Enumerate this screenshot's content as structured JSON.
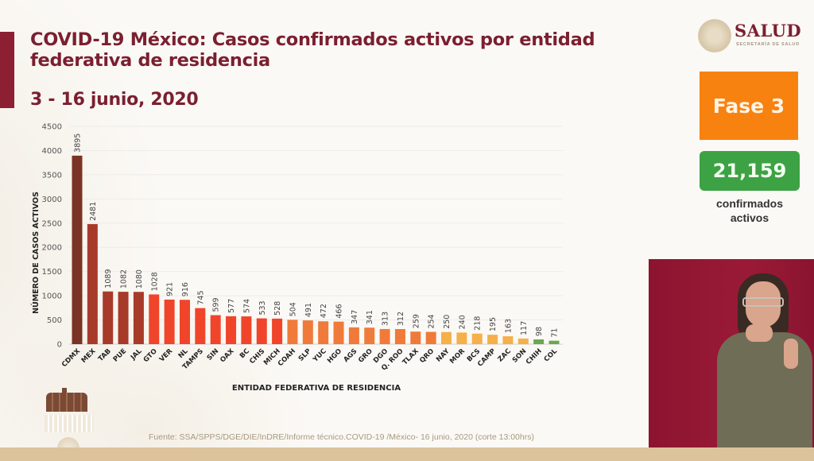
{
  "header": {
    "title": "COVID-19 México: Casos confirmados activos por entidad federativa de residencia",
    "date_range": "3 - 16 junio, 2020"
  },
  "branding": {
    "logo_text": "SALUD",
    "logo_subtext": "SECRETARÍA DE SALUD"
  },
  "status": {
    "phase_label": "Fase 3",
    "active_count": "21,159",
    "active_count_label": "confirmados activos",
    "phase_color": "#f8820f",
    "count_color": "#3da244"
  },
  "footer": {
    "source": "Fuente: SSA/SPPS/DGE/DIE/InDRE/Informe técnico.COVID-19 /México- 16 junio, 2020 (corte 13:00hrs)"
  },
  "chart_data": {
    "type": "bar",
    "title": "COVID-19 México: Casos confirmados activos por entidad federativa de residencia",
    "subtitle": "3 - 16 junio, 2020",
    "xlabel": "ENTIDAD FEDERATIVA DE RESIDENCIA",
    "ylabel": "NÚMERO DE CASOS ACTIVOS",
    "ylim": [
      0,
      4500
    ],
    "yticks": [
      0,
      500,
      1000,
      1500,
      2000,
      2500,
      3000,
      3500,
      4000,
      4500
    ],
    "grid": true,
    "data_labels": true,
    "categories": [
      "CDMX",
      "MEX",
      "TAB",
      "PUE",
      "JAL",
      "GTO",
      "VER",
      "NL",
      "TAMPS",
      "SIN",
      "OAX",
      "BC",
      "CHIS",
      "MICH",
      "COAH",
      "SLP",
      "YUC",
      "HGO",
      "AGS",
      "GRO",
      "DGO",
      "Q. ROO",
      "TLAX",
      "QRO",
      "NAY",
      "MOR",
      "BCS",
      "CAMP",
      "ZAC",
      "SON",
      "CHIH",
      "COL"
    ],
    "values": [
      3895,
      2481,
      1089,
      1082,
      1080,
      1028,
      921,
      916,
      745,
      599,
      577,
      574,
      533,
      528,
      504,
      491,
      472,
      466,
      347,
      341,
      313,
      312,
      259,
      254,
      250,
      240,
      218,
      195,
      163,
      117,
      98,
      71
    ],
    "bar_colors": [
      "#7a3324",
      "#a83a2a",
      "#a83a2a",
      "#a83a2a",
      "#a83a2a",
      "#f0452a",
      "#f0452a",
      "#f0452a",
      "#f0452a",
      "#f0452a",
      "#f0452a",
      "#f0452a",
      "#f0452a",
      "#f0452a",
      "#f07a3a",
      "#f07a3a",
      "#f07a3a",
      "#f07a3a",
      "#f07a3a",
      "#f07a3a",
      "#f07a3a",
      "#f07a3a",
      "#f07a3a",
      "#f07a3a",
      "#f5b04a",
      "#f5b04a",
      "#f5b04a",
      "#f5b04a",
      "#f5b04a",
      "#f5b04a",
      "#6aa84f",
      "#6aa84f"
    ]
  }
}
